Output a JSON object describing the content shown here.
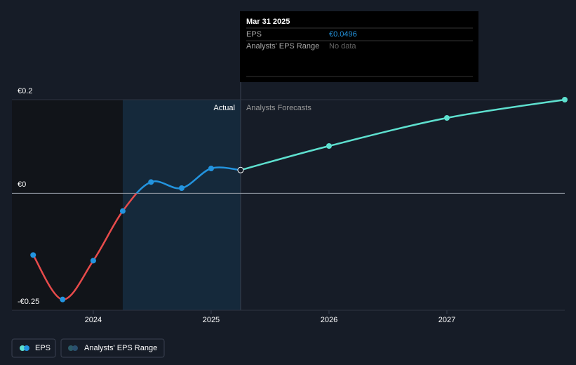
{
  "chart_data": {
    "type": "line",
    "ylim": [
      -0.25,
      0.2
    ],
    "yticks": [
      {
        "value": 0.2,
        "label": "€0.2"
      },
      {
        "value": 0,
        "label": "€0"
      },
      {
        "value": -0.25,
        "label": "-€0.25"
      }
    ],
    "xlim": [
      2023.31,
      2028
    ],
    "xticks": [
      2024,
      2025,
      2026,
      2027
    ],
    "grid": true,
    "region_labels": [
      "Actual",
      "Analysts Forecasts"
    ],
    "series": [
      {
        "name": "EPS",
        "color": "#2394df",
        "negative_color": "#e84b4b",
        "x": [
          2023.49,
          2023.74,
          2024.0,
          2024.25,
          2024.49,
          2024.75,
          2025.0,
          2025.25
        ],
        "values": [
          -0.132,
          -0.227,
          -0.144,
          -0.038,
          0.024,
          0.011,
          0.053,
          0.0496
        ]
      },
      {
        "name": "Analysts' EPS Range",
        "color": "#5ee0cf",
        "x": [
          2025.25,
          2026.0,
          2027.0,
          2028.0
        ],
        "values": [
          0.0496,
          0.101,
          0.161,
          0.2
        ]
      }
    ],
    "tooltip": {
      "date": "Mar 31 2025",
      "rows": [
        {
          "label": "EPS",
          "value": "€0.0496"
        },
        {
          "label": "Analysts' EPS Range",
          "value": "No data"
        }
      ]
    }
  }
}
